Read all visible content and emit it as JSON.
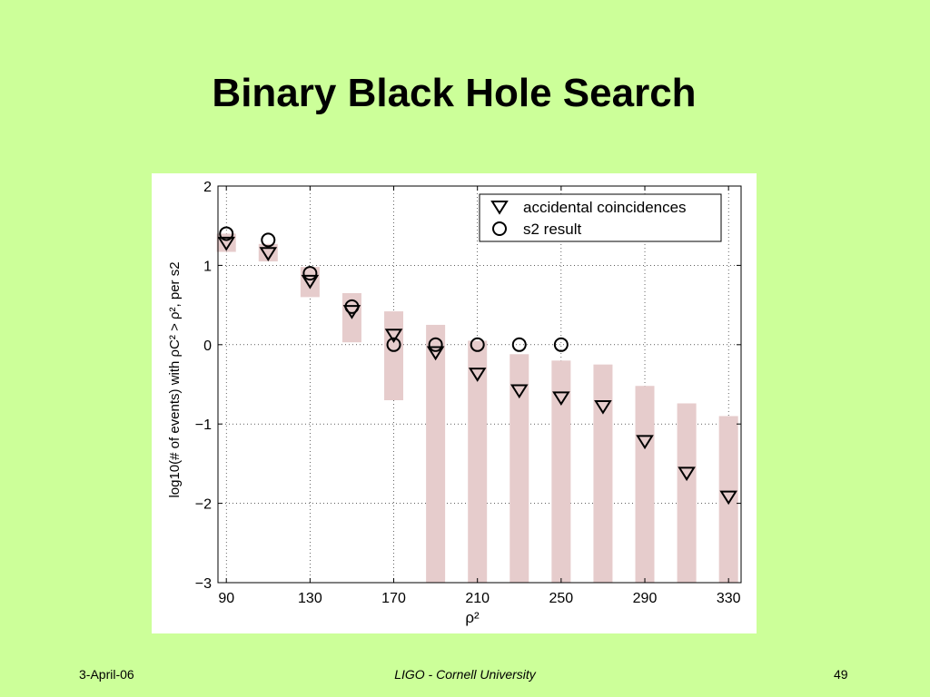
{
  "slide": {
    "title": "Binary Black Hole Search",
    "footer_date": "3-April-06",
    "footer_center": "LIGO - Cornell University",
    "page_number": "49"
  },
  "colors": {
    "background": "#ccff99",
    "plot_background": "#ffffff",
    "error_band": "#e6cccc",
    "marker": "#000000"
  },
  "chart_data": {
    "type": "scatter",
    "title": "",
    "xlabel": "ρ²",
    "ylabel": "log10(# of events) with ρC² > ρ², per s2",
    "xlim": [
      86,
      336
    ],
    "ylim": [
      -3,
      2
    ],
    "xticks": [
      90,
      130,
      170,
      210,
      250,
      290,
      330
    ],
    "yticks": [
      -3,
      -2,
      -1,
      0,
      1,
      2
    ],
    "ytick_labels": [
      "−3",
      "−2",
      "−1",
      "0",
      "1",
      "2"
    ],
    "grid": true,
    "legend_position": "top-right",
    "series": [
      {
        "name": "accidental coincidences",
        "marker": "triangle-down",
        "x": [
          90,
          110,
          130,
          150,
          170,
          190,
          210,
          230,
          250,
          270,
          290,
          310,
          330
        ],
        "y": [
          1.28,
          1.15,
          0.8,
          0.42,
          0.12,
          -0.1,
          -0.37,
          -0.58,
          -0.67,
          -0.78,
          -1.22,
          -1.62,
          -1.92
        ]
      },
      {
        "name": "s2 result",
        "marker": "circle",
        "x": [
          90,
          110,
          130,
          150,
          170,
          190,
          210,
          230,
          250
        ],
        "y": [
          1.4,
          1.32,
          0.9,
          0.48,
          0.0,
          0.0,
          0.0,
          0.0,
          0.0
        ]
      }
    ],
    "error_bands": [
      {
        "x": 90,
        "low": 1.17,
        "high": 1.4
      },
      {
        "x": 110,
        "low": 1.05,
        "high": 1.27
      },
      {
        "x": 130,
        "low": 0.6,
        "high": 0.98
      },
      {
        "x": 150,
        "low": 0.03,
        "high": 0.65
      },
      {
        "x": 170,
        "low": -0.7,
        "high": 0.42
      },
      {
        "x": 190,
        "low": -3,
        "high": 0.25
      },
      {
        "x": 210,
        "low": -3,
        "high": 0.05
      },
      {
        "x": 230,
        "low": -3,
        "high": -0.12
      },
      {
        "x": 250,
        "low": -3,
        "high": -0.2
      },
      {
        "x": 270,
        "low": -3,
        "high": -0.25
      },
      {
        "x": 290,
        "low": -3,
        "high": -0.52
      },
      {
        "x": 310,
        "low": -3,
        "high": -0.74
      },
      {
        "x": 330,
        "low": -3,
        "high": -0.9
      }
    ]
  }
}
